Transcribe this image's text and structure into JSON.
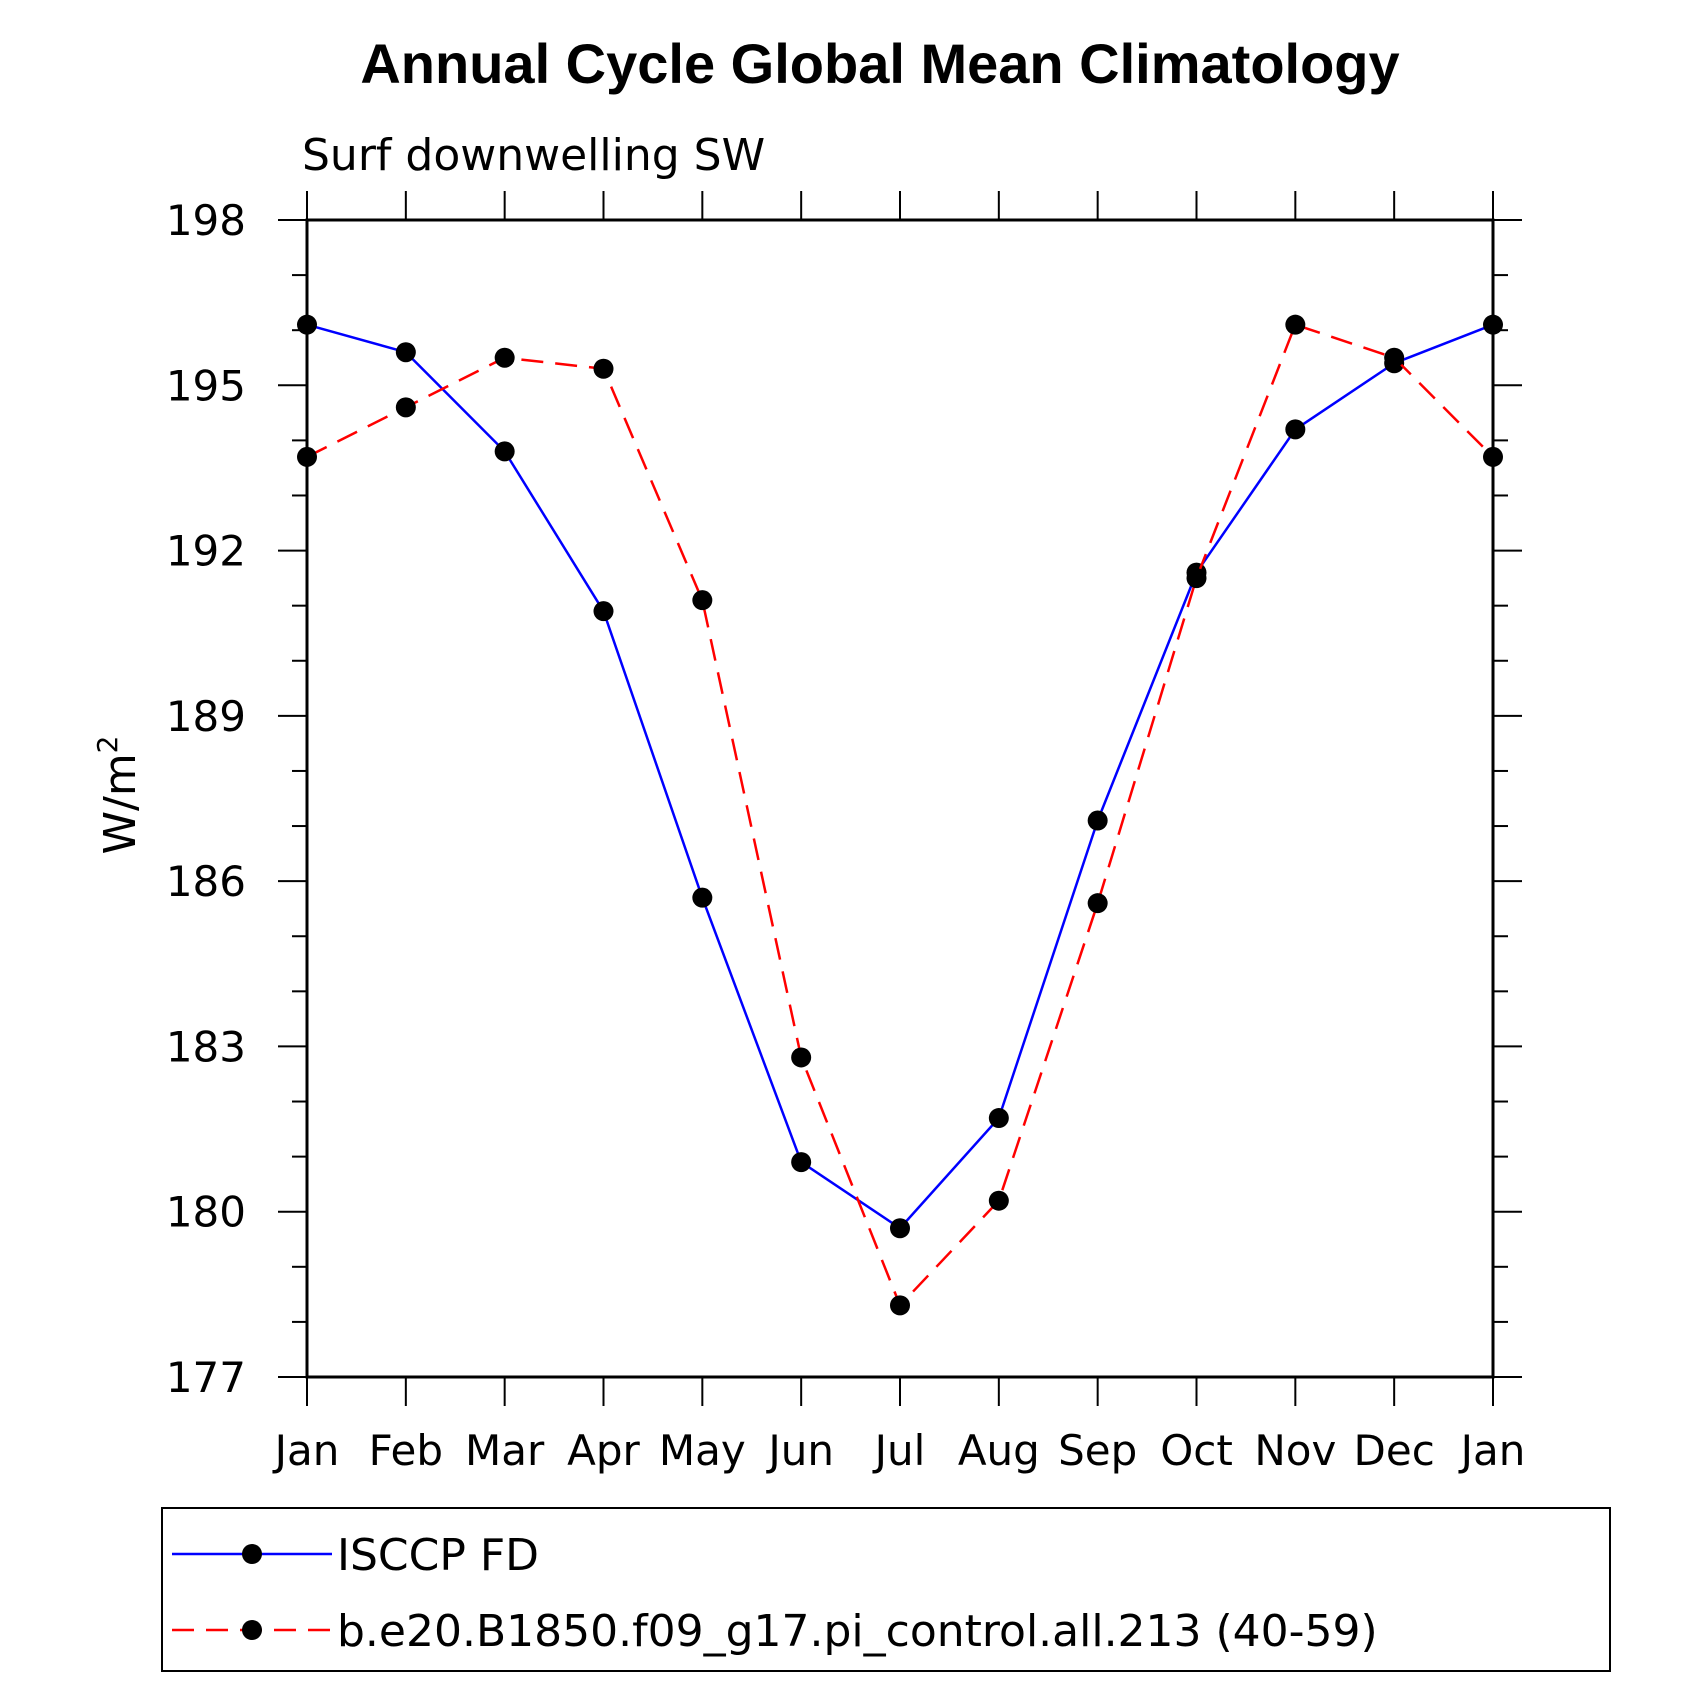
{
  "chart_data": {
    "type": "line",
    "title": "Annual Cycle Global Mean Climatology",
    "subtitle": "Surf downwelling SW",
    "ylabel": "W/m",
    "ylabel_superscript": "2",
    "categories": [
      "Jan",
      "Feb",
      "Mar",
      "Apr",
      "May",
      "Jun",
      "Jul",
      "Aug",
      "Sep",
      "Oct",
      "Nov",
      "Dec",
      "Jan"
    ],
    "ylim": [
      177,
      198
    ],
    "yticks": [
      177,
      180,
      183,
      186,
      189,
      192,
      195,
      198
    ],
    "grid": false,
    "legend_position": "bottom",
    "series": [
      {
        "name": "ISCCP FD",
        "color": "#0000ff",
        "dash": "solid",
        "values": [
          196.1,
          195.6,
          193.8,
          190.9,
          185.7,
          180.9,
          179.7,
          181.7,
          187.1,
          191.6,
          194.2,
          195.4,
          196.1
        ]
      },
      {
        "name": "b.e20.B1850.f09_g17.pi_control.all.213 (40-59)",
        "color": "#ff0000",
        "dash": "dashed",
        "values": [
          193.7,
          194.6,
          195.5,
          195.3,
          191.1,
          182.8,
          178.3,
          180.2,
          185.6,
          191.5,
          196.1,
          195.5,
          193.7
        ]
      }
    ]
  }
}
